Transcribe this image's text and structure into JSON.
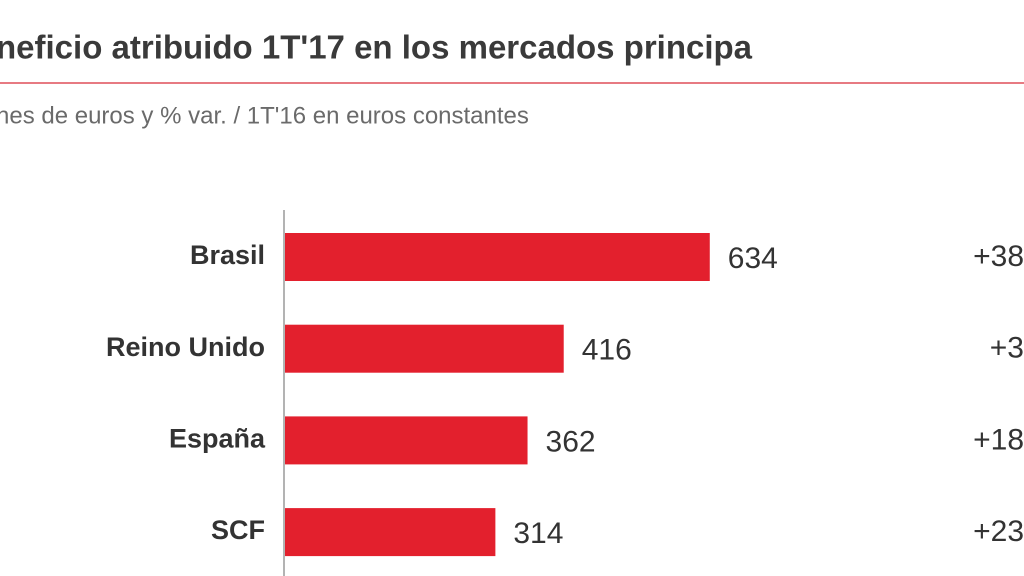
{
  "chart_data": {
    "type": "bar",
    "orientation": "horizontal",
    "title": "neficio atribuido 1T'17 en los mercados principa",
    "subtitle": "nes de euros y % var. / 1T'16 en euros constantes",
    "categories": [
      "Brasil",
      "Reino Unido",
      "España",
      "SCF"
    ],
    "values": [
      634,
      416,
      362,
      314
    ],
    "color": "#e3202d",
    "annotations": [
      "+38",
      "+3",
      "+18",
      "+23"
    ]
  }
}
